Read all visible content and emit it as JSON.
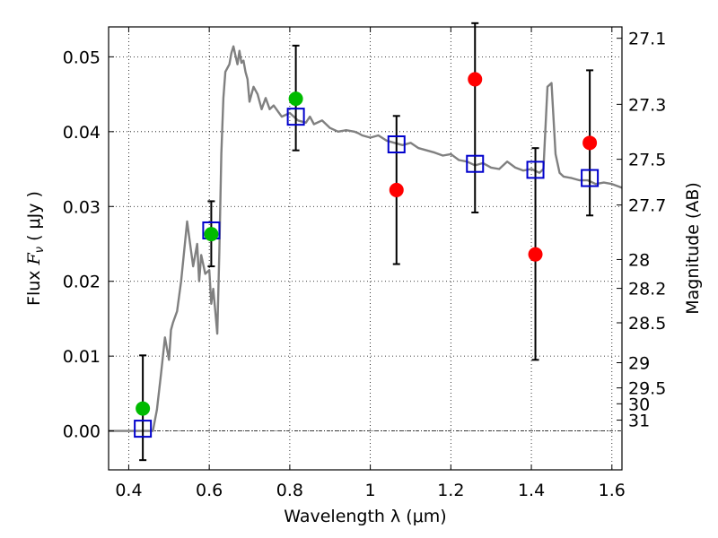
{
  "chart_data": {
    "type": "scatter",
    "title": "",
    "xlabel": "Wavelength  λ (μm)",
    "ylabel": "Flux  F_ν  ( μJy )",
    "ylabel_parts": {
      "prefix": "Flux  ",
      "symbol": "F",
      "subscript": "ν",
      "unit": "  ( μJy )"
    },
    "ylabel_right": "Magnitude (AB)",
    "xlim": [
      0.35,
      1.625
    ],
    "ylim": [
      -0.0052,
      0.054
    ],
    "grid": true,
    "x_ticks": [
      {
        "value": 0.4,
        "label": "0.4"
      },
      {
        "value": 0.6,
        "label": "0.6"
      },
      {
        "value": 0.8,
        "label": "0.8"
      },
      {
        "value": 1.0,
        "label": "1"
      },
      {
        "value": 1.2,
        "label": "1.2"
      },
      {
        "value": 1.4,
        "label": "1.4"
      },
      {
        "value": 1.6,
        "label": "1.6"
      }
    ],
    "y_ticks": [
      {
        "value": 0.0,
        "label": "0.00"
      },
      {
        "value": 0.01,
        "label": "0.01"
      },
      {
        "value": 0.02,
        "label": "0.02"
      },
      {
        "value": 0.03,
        "label": "0.03"
      },
      {
        "value": 0.04,
        "label": "0.04"
      },
      {
        "value": 0.05,
        "label": "0.05"
      }
    ],
    "mag_ticks": [
      {
        "value": 27.1,
        "label": "27.1"
      },
      {
        "value": 27.3,
        "label": "27.3"
      },
      {
        "value": 27.5,
        "label": "27.5"
      },
      {
        "value": 27.7,
        "label": "27.7"
      },
      {
        "value": 28.0,
        "label": "28"
      },
      {
        "value": 28.2,
        "label": "28.2"
      },
      {
        "value": 28.5,
        "label": "28.5"
      },
      {
        "value": 29.0,
        "label": "29"
      },
      {
        "value": 29.5,
        "label": "29.5"
      },
      {
        "value": 30.0,
        "label": "30"
      },
      {
        "value": 31.0,
        "label": "31"
      }
    ],
    "series": [
      {
        "kind": "line",
        "color": "#808080",
        "x": [
          0.35,
          0.44,
          0.46,
          0.47,
          0.48,
          0.49,
          0.5,
          0.505,
          0.51,
          0.52,
          0.53,
          0.545,
          0.55,
          0.56,
          0.57,
          0.575,
          0.58,
          0.59,
          0.6,
          0.605,
          0.61,
          0.615,
          0.62,
          0.625,
          0.63,
          0.635,
          0.64,
          0.65,
          0.655,
          0.66,
          0.665,
          0.67,
          0.675,
          0.68,
          0.685,
          0.69,
          0.695,
          0.7,
          0.71,
          0.72,
          0.73,
          0.74,
          0.75,
          0.76,
          0.78,
          0.8,
          0.82,
          0.84,
          0.85,
          0.86,
          0.88,
          0.9,
          0.92,
          0.94,
          0.96,
          0.97,
          0.98,
          1.0,
          1.02,
          1.04,
          1.06,
          1.08,
          1.1,
          1.12,
          1.14,
          1.16,
          1.18,
          1.2,
          1.22,
          1.24,
          1.26,
          1.28,
          1.3,
          1.32,
          1.34,
          1.36,
          1.38,
          1.4,
          1.42,
          1.43,
          1.44,
          1.45,
          1.46,
          1.47,
          1.48,
          1.5,
          1.52,
          1.54,
          1.56,
          1.58,
          1.6,
          1.625
        ],
        "y": [
          0.0,
          0.0,
          0.0,
          0.0028,
          0.0075,
          0.0125,
          0.0095,
          0.0135,
          0.0145,
          0.016,
          0.02,
          0.028,
          0.026,
          0.022,
          0.025,
          0.02,
          0.0235,
          0.021,
          0.0215,
          0.017,
          0.019,
          0.016,
          0.013,
          0.024,
          0.037,
          0.0445,
          0.048,
          0.049,
          0.0505,
          0.0514,
          0.0502,
          0.049,
          0.0508,
          0.0492,
          0.0495,
          0.048,
          0.047,
          0.044,
          0.046,
          0.045,
          0.043,
          0.0445,
          0.043,
          0.0435,
          0.042,
          0.0425,
          0.0415,
          0.0412,
          0.042,
          0.041,
          0.0415,
          0.0405,
          0.04,
          0.0402,
          0.04,
          0.0398,
          0.0395,
          0.0392,
          0.0395,
          0.0388,
          0.0385,
          0.0382,
          0.0385,
          0.0378,
          0.0375,
          0.0372,
          0.0368,
          0.037,
          0.0362,
          0.036,
          0.0355,
          0.0358,
          0.0352,
          0.035,
          0.036,
          0.0352,
          0.0348,
          0.035,
          0.0345,
          0.035,
          0.046,
          0.0465,
          0.037,
          0.0345,
          0.034,
          0.0338,
          0.0335,
          0.0335,
          0.033,
          0.0332,
          0.033,
          0.0325
        ]
      },
      {
        "name": "",
        "kind": "square",
        "color": "#0000cc",
        "x": [
          0.435,
          0.605,
          0.815,
          1.065,
          1.26,
          1.41,
          1.545
        ],
        "y": [
          0.0003,
          0.0268,
          0.042,
          0.0383,
          0.0357,
          0.0349,
          0.0338
        ],
        "err_low": [
          0.0042,
          0.0048,
          0.0045,
          0.016,
          0.0065,
          0.0254,
          0.005
        ],
        "err_high": [
          0.0098,
          0.0039,
          0.0095,
          0.0038,
          0.0188,
          0.0029,
          0.0144
        ]
      },
      {
        "name": "",
        "kind": "circle",
        "color": "#00bb00",
        "x": [
          0.435,
          0.605,
          0.815
        ],
        "y": [
          0.003,
          0.0263,
          0.0444
        ]
      },
      {
        "name": "",
        "kind": "circle",
        "color": "#ff0000",
        "x": [
          1.065,
          1.26,
          1.41,
          1.545
        ],
        "y": [
          0.0322,
          0.047,
          0.0236,
          0.0385
        ]
      }
    ]
  }
}
